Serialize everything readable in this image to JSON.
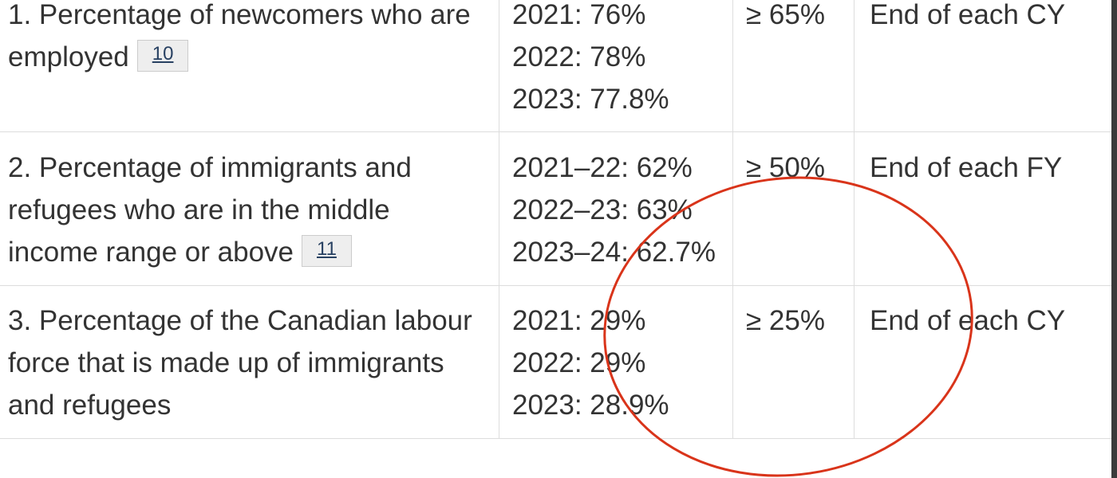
{
  "table": {
    "rows": [
      {
        "indicator": "1. Percentage of newcomers who are employed",
        "footnote": "10",
        "results": [
          "2021: 76%",
          "2022: 78%",
          "2023: 77.8%"
        ],
        "target": "≥ 65%",
        "date": "End of each CY"
      },
      {
        "indicator": "2. Percentage of immigrants and refugees who are in the middle income range or above",
        "footnote": "11",
        "results": [
          "2021–22: 62%",
          "2022–23: 63%",
          "2023–24: 62.7%"
        ],
        "target": "≥ 50%",
        "date": "End of each FY"
      },
      {
        "indicator": "3. Percentage of the Canadian labour force that is made up of immigrants and refugees",
        "results": [
          "2021: 29%",
          "2022: 29%",
          "2023: 28.9%"
        ],
        "target": "≥ 25%",
        "date": "End of each CY"
      }
    ]
  }
}
